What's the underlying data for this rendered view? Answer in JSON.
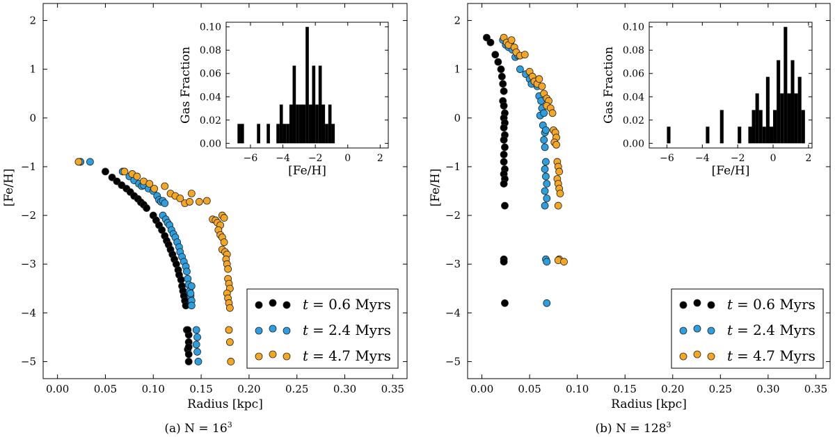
{
  "chart_data": [
    {
      "type": "scatter",
      "caption": "(a) N = 16^3",
      "caption_prefix": "(a) N = 16",
      "caption_sup": "3",
      "xlabel": "Radius [kpc]",
      "ylabel": "[Fe/H]",
      "xlim": [
        -0.015,
        0.365
      ],
      "ylim": [
        -5.35,
        2.35
      ],
      "xticks": [
        0.0,
        0.05,
        0.1,
        0.15,
        0.2,
        0.25,
        0.3,
        0.35
      ],
      "xtick_labels": [
        "0.00",
        "0.05",
        "0.10",
        "0.15",
        "0.20",
        "0.25",
        "0.30",
        "0.35"
      ],
      "yticks": [
        -5,
        -4,
        -3,
        -2,
        -1,
        0,
        1,
        2
      ],
      "ytick_labels": [
        "−5",
        "−4",
        "−3",
        "−2",
        "−1",
        "0",
        "1",
        "2"
      ],
      "legend_position": "lower-right",
      "series": [
        {
          "name": "t = 0.6 Myrs",
          "color": "#000000",
          "x": [
            0.024,
            0.05,
            0.057,
            0.062,
            0.067,
            0.072,
            0.076,
            0.08,
            0.084,
            0.087,
            0.09,
            0.093,
            0.1,
            0.103,
            0.106,
            0.109,
            0.112,
            0.114,
            0.116,
            0.118,
            0.12,
            0.122,
            0.124,
            0.126,
            0.127,
            0.129,
            0.13,
            0.131,
            0.132,
            0.133,
            0.134,
            0.135,
            0.137,
            0.137,
            0.136,
            0.137,
            0.137,
            0.136,
            0.137
          ],
          "y": [
            -0.9,
            -1.1,
            -1.22,
            -1.3,
            -1.38,
            -1.45,
            -1.52,
            -1.6,
            -1.66,
            -1.73,
            -1.78,
            -1.85,
            -2.0,
            -2.1,
            -2.2,
            -2.3,
            -2.42,
            -2.52,
            -2.6,
            -2.7,
            -2.8,
            -2.9,
            -3.0,
            -3.12,
            -3.22,
            -3.32,
            -3.45,
            -3.55,
            -3.65,
            -3.75,
            -3.85,
            -4.35,
            -4.45,
            -4.6,
            -4.75,
            -4.85,
            -5.0,
            -4.35,
            -4.7
          ]
        },
        {
          "name": "t = 2.4 Myrs",
          "color": "#2b9fe0",
          "x": [
            0.024,
            0.034,
            0.068,
            0.075,
            0.08,
            0.085,
            0.088,
            0.09,
            0.095,
            0.1,
            0.104,
            0.106,
            0.108,
            0.11,
            0.112,
            0.11,
            0.113,
            0.115,
            0.117,
            0.119,
            0.121,
            0.123,
            0.125,
            0.127,
            0.128,
            0.13,
            0.132,
            0.134,
            0.135,
            0.136,
            0.137,
            0.138,
            0.139,
            0.14,
            0.14,
            0.139,
            0.14,
            0.145,
            0.146,
            0.145,
            0.146,
            0.147
          ],
          "y": [
            -0.9,
            -0.9,
            -1.1,
            -1.2,
            -1.28,
            -1.35,
            -1.4,
            -1.38,
            -1.45,
            -1.5,
            -1.6,
            -1.68,
            -1.72,
            -1.7,
            -1.75,
            -2.0,
            -2.08,
            -2.15,
            -2.2,
            -2.3,
            -2.38,
            -2.45,
            -2.55,
            -2.65,
            -2.75,
            -2.85,
            -2.95,
            -3.05,
            -3.15,
            -3.3,
            -3.42,
            -3.55,
            -3.65,
            -3.75,
            -3.85,
            -3.6,
            -3.45,
            -4.35,
            -4.5,
            -4.65,
            -4.8,
            -5.0
          ]
        },
        {
          "name": "t = 4.7 Myrs",
          "color": "#f5a623",
          "x": [
            0.022,
            0.07,
            0.078,
            0.083,
            0.09,
            0.096,
            0.101,
            0.112,
            0.118,
            0.123,
            0.128,
            0.133,
            0.138,
            0.14,
            0.148,
            0.156,
            0.162,
            0.165,
            0.167,
            0.17,
            0.172,
            0.174,
            0.168,
            0.17,
            0.172,
            0.174,
            0.172,
            0.175,
            0.177,
            0.176,
            0.177,
            0.178,
            0.178,
            0.179,
            0.18,
            0.177,
            0.178,
            0.179,
            0.18,
            0.179,
            0.18,
            0.181
          ],
          "y": [
            -0.9,
            -1.1,
            -1.15,
            -1.2,
            -1.3,
            -1.35,
            -1.45,
            -1.4,
            -1.55,
            -1.6,
            -1.65,
            -1.75,
            -1.72,
            -1.55,
            -1.72,
            -1.7,
            -2.08,
            -2.1,
            -2.15,
            -2.2,
            -2.0,
            -2.05,
            -2.3,
            -2.4,
            -2.45,
            -2.55,
            -2.7,
            -2.75,
            -2.8,
            -2.9,
            -3.0,
            -3.1,
            -3.3,
            -3.4,
            -3.5,
            -3.6,
            -3.7,
            -3.8,
            -3.9,
            -4.35,
            -4.6,
            -5.0
          ]
        }
      ],
      "inset": {
        "type": "bar",
        "xlabel": "[Fe/H]",
        "ylabel": "Gas Fraction",
        "xlim": [
          -7.5,
          2.5
        ],
        "ylim": [
          -0.004,
          0.104
        ],
        "xticks": [
          -6,
          -4,
          -2,
          0,
          2
        ],
        "xtick_labels": [
          "−6",
          "−4",
          "−2",
          "0",
          "2"
        ],
        "yticks": [
          0.0,
          0.02,
          0.04,
          0.06,
          0.08,
          0.1
        ],
        "ytick_labels": [
          "0.00",
          "0.02",
          "0.04",
          "0.06",
          "0.08",
          "0.10"
        ],
        "bin_width": 0.2,
        "bin_left_edges": [
          -6.8,
          -6.6,
          -5.6,
          -5.0,
          -4.4,
          -4.2,
          -4.0,
          -3.8,
          -3.6,
          -3.4,
          -3.2,
          -3.0,
          -2.8,
          -2.6,
          -2.4,
          -2.2,
          -2.0,
          -1.8,
          -1.6,
          -1.4,
          -1.2,
          -1.0
        ],
        "values": [
          0.0167,
          0.0167,
          0.0167,
          0.0167,
          0.0167,
          0.0333,
          0.0167,
          0.0167,
          0.0333,
          0.0667,
          0.0333,
          0.0333,
          0.0333,
          0.1,
          0.0333,
          0.0667,
          0.0333,
          0.0667,
          0.0333,
          0.0167,
          0.0333,
          0.0167
        ]
      }
    },
    {
      "type": "scatter",
      "caption": "(b) N = 128^3",
      "caption_prefix": "(b) N = 128",
      "caption_sup": "3",
      "xlabel": "Radius [kpc]",
      "ylabel": "[Fe/H]",
      "xlim": [
        -0.015,
        0.365
      ],
      "ylim": [
        -5.35,
        2.35
      ],
      "xticks": [
        0.0,
        0.05,
        0.1,
        0.15,
        0.2,
        0.25,
        0.3,
        0.35
      ],
      "xtick_labels": [
        "0.00",
        "0.05",
        "0.10",
        "0.15",
        "0.20",
        "0.25",
        "0.30",
        "0.35"
      ],
      "yticks": [
        -5,
        -4,
        -3,
        -2,
        -1,
        0,
        1,
        2
      ],
      "ytick_labels": [
        "−5",
        "−4",
        "−3",
        "−2",
        "−1",
        "0",
        "1",
        "2"
      ],
      "legend_position": "lower-right",
      "series": [
        {
          "name": "t = 0.6 Myrs",
          "color": "#000000",
          "x": [
            0.005,
            0.009,
            0.014,
            0.017,
            0.02,
            0.021,
            0.022,
            0.023,
            0.022,
            0.023,
            0.024,
            0.023,
            0.024,
            0.023,
            0.024,
            0.023,
            0.024,
            0.023,
            0.024,
            0.023,
            0.024,
            0.023,
            0.024,
            0.023,
            0.023,
            0.024,
            0.023
          ],
          "y": [
            1.65,
            1.55,
            1.3,
            1.15,
            1.0,
            0.85,
            0.7,
            0.55,
            0.35,
            0.25,
            0.1,
            0.0,
            -0.1,
            -0.2,
            -0.35,
            -0.45,
            -0.6,
            -0.9,
            -1.05,
            -1.15,
            -1.25,
            -1.35,
            -1.8,
            -2.9,
            -2.95,
            -3.8,
            -0.75
          ]
        },
        {
          "name": "t = 2.4 Myrs",
          "color": "#2b9fe0",
          "x": [
            0.022,
            0.025,
            0.028,
            0.03,
            0.032,
            0.035,
            0.038,
            0.04,
            0.046,
            0.05,
            0.052,
            0.055,
            0.058,
            0.06,
            0.062,
            0.063,
            0.061,
            0.065,
            0.064,
            0.066,
            0.065,
            0.066,
            0.067,
            0.066,
            0.067,
            0.068,
            0.066,
            0.068,
            0.066,
            0.067,
            0.068,
            0.068,
            0.067
          ],
          "y": [
            1.6,
            1.5,
            1.45,
            1.55,
            1.4,
            1.25,
            1.28,
            1.0,
            0.9,
            0.8,
            0.7,
            0.75,
            0.65,
            0.45,
            0.35,
            0.2,
            0.05,
            0.1,
            -0.15,
            -0.3,
            -0.45,
            -0.6,
            -0.9,
            -1.05,
            -1.2,
            -1.35,
            -1.5,
            -1.65,
            -1.8,
            -2.9,
            -2.95,
            -3.8,
            -0.25
          ]
        },
        {
          "name": "t = 4.7 Myrs",
          "color": "#f5a623",
          "x": [
            0.023,
            0.026,
            0.028,
            0.031,
            0.034,
            0.036,
            0.04,
            0.045,
            0.05,
            0.053,
            0.055,
            0.058,
            0.06,
            0.063,
            0.065,
            0.068,
            0.07,
            0.068,
            0.072,
            0.074,
            0.075,
            0.077,
            0.078,
            0.076,
            0.078,
            0.079,
            0.08,
            0.081,
            0.079,
            0.08,
            0.081,
            0.082,
            0.08,
            0.081,
            0.08,
            0.086
          ],
          "y": [
            1.65,
            1.55,
            1.5,
            1.6,
            1.45,
            1.35,
            1.28,
            1.3,
            0.95,
            0.85,
            0.75,
            0.7,
            0.8,
            0.65,
            0.5,
            0.4,
            0.35,
            0.25,
            0.2,
            0.1,
            -0.25,
            -0.3,
            -0.4,
            -0.5,
            -0.55,
            -0.9,
            -1.0,
            -1.1,
            -1.25,
            -1.35,
            -1.45,
            -1.55,
            -1.8,
            -2.9,
            -2.92,
            -2.95
          ]
        }
      ],
      "inset": {
        "type": "bar",
        "xlabel": "[Fe/H]",
        "ylabel": "Gas Fraction",
        "xlim": [
          -7.0,
          2.2
        ],
        "ylim": [
          -0.004,
          0.104
        ],
        "xticks": [
          -6,
          -4,
          -2,
          0,
          2
        ],
        "xtick_labels": [
          "−6",
          "−4",
          "−2",
          "0",
          "2"
        ],
        "yticks": [
          0.0,
          0.02,
          0.04,
          0.06,
          0.08,
          0.1
        ],
        "ytick_labels": [
          "0.00",
          "0.02",
          "0.04",
          "0.06",
          "0.08",
          "0.10"
        ],
        "bin_width": 0.2,
        "bin_left_edges": [
          -6.0,
          -3.8,
          -3.0,
          -2.0,
          -1.4,
          -1.2,
          -1.0,
          -0.8,
          -0.6,
          -0.4,
          -0.2,
          0.0,
          0.2,
          0.4,
          0.6,
          0.8,
          1.0,
          1.2,
          1.4,
          1.6
        ],
        "values": [
          0.0143,
          0.0143,
          0.0286,
          0.0143,
          0.0143,
          0.0286,
          0.0429,
          0.0286,
          0.0143,
          0.0571,
          0.0143,
          0.0286,
          0.0714,
          0.0429,
          0.1,
          0.0429,
          0.0714,
          0.0429,
          0.0571,
          0.0286
        ]
      }
    }
  ],
  "legend_items": [
    {
      "label": "t = 0.6 Myrs",
      "var": "t",
      "rest": "= 0.6 Myrs",
      "color": "#000000"
    },
    {
      "label": "t = 2.4 Myrs",
      "var": "t",
      "rest": "= 2.4 Myrs",
      "color": "#2b9fe0"
    },
    {
      "label": "t = 4.7 Myrs",
      "var": "t",
      "rest": "= 4.7 Myrs",
      "color": "#f5a623"
    }
  ],
  "colors": {
    "black_series": "#000000",
    "blue_series": "#2b9fe0",
    "orange_series": "#f5a623",
    "histogram": "#000000"
  }
}
